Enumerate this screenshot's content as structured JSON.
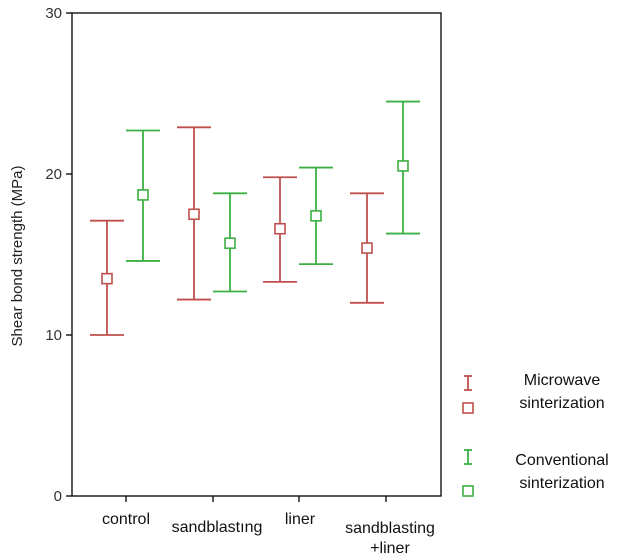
{
  "chart_data": {
    "type": "errorbar",
    "categories": [
      "control",
      "sandblasting",
      "liner",
      "sandblasting +liner"
    ],
    "category_label_lines": [
      [
        "control"
      ],
      [
        "sandblastıng"
      ],
      [
        "liner"
      ],
      [
        "sandblasting",
        "+liner"
      ]
    ],
    "ylabel": "Shear bond strength (MPa)",
    "xlabel": "",
    "ylim": [
      0,
      30
    ],
    "yticks": [
      0,
      10,
      20,
      30
    ],
    "grid": false,
    "legend_position": "right",
    "series": [
      {
        "name": "Microwave sinterization",
        "name_lines": [
          "Microwave",
          "sinterization"
        ],
        "color": "#c0504d",
        "means": [
          13.5,
          17.5,
          16.6,
          15.4
        ],
        "lower": [
          10.0,
          12.2,
          13.3,
          12.0
        ],
        "upper": [
          17.1,
          22.9,
          19.8,
          18.8
        ]
      },
      {
        "name": "Conventional sinterization",
        "name_lines": [
          "Conventional",
          "sinterization"
        ],
        "color": "#3cb043",
        "means": [
          18.7,
          15.7,
          17.4,
          20.5
        ],
        "lower": [
          14.6,
          12.7,
          14.4,
          16.3
        ],
        "upper": [
          22.7,
          18.8,
          20.4,
          24.5
        ]
      }
    ]
  }
}
